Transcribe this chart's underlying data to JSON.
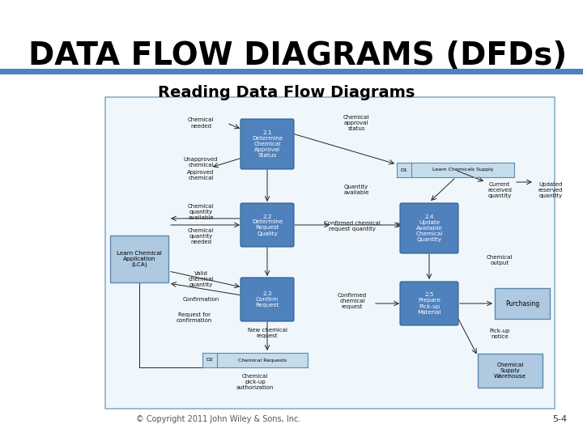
{
  "title": "DATA FLOW DIAGRAMS (DFDs)",
  "subtitle": "Reading Data Flow Diagrams",
  "copyright": "© Copyright 2011 John Wiley & Sons, Inc.",
  "slide_number": "5-4",
  "bg_color": "#ffffff",
  "title_color": "#000000",
  "subtitle_color": "#000000",
  "rule_color": "#4f81bd",
  "title_fontsize": 28,
  "subtitle_fontsize": 14,
  "process_color": "#4f81bd",
  "entity_color": "#aec9e0",
  "datastore_color": "#c5dced",
  "diagram_bg": "#f0f7fc",
  "diagram_border": "#8ab0c8",
  "copyright_fontsize": 7,
  "slide_num_fontsize": 8
}
